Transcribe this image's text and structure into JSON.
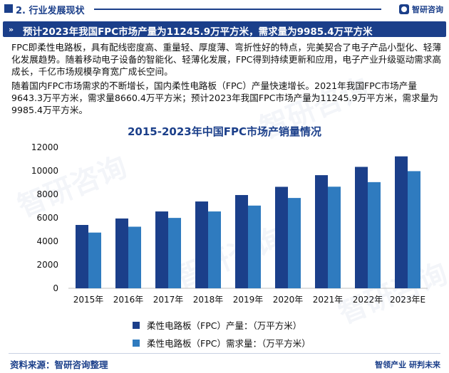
{
  "header": {
    "section_title": "2. 行业发展现状",
    "logo_text": "智研咨询"
  },
  "banner": {
    "text": "预计2023年我国FPC市场产量为11245.9万平方米，需求量为9985.4万平方米"
  },
  "body": {
    "paragraph1": "FPC即柔性电路板，具有配线密度高、重量轻、厚度薄、弯折性好的特点，完美契合了电子产品小型化、轻薄化发展趋势。随着移动电子设备的智能化、轻薄化发展，FPC得到持续更新和应用，电子产业升级驱动需求高成长，千亿市场规模孕育宽广成长空间。",
    "paragraph2": "随着国内FPC市场需求的不断增长，国内柔性电路板（FPC）产量快速增长。2021年我国FPC市场产量9643.3万平方米，需求量8660.4万平方米；预计2023年我国FPC市场产量为11245.9万平方米，需求量为9985.4万平方米。"
  },
  "chart_data": {
    "type": "bar",
    "title": "2015-2023年中国FPC市场产销量情况",
    "categories": [
      "2015年",
      "2016年",
      "2017年",
      "2018年",
      "2019年",
      "2020年",
      "2021年",
      "2022年",
      "2023年E"
    ],
    "series": [
      {
        "name": "柔性电路板（FPC）产量：（万平方米）",
        "color": "#1b3f8a",
        "values": [
          5400,
          5950,
          6550,
          7400,
          7950,
          8650,
          9643.3,
          10350,
          11245.9
        ]
      },
      {
        "name": "柔性电路板（FPC）需求量：（万平方米）",
        "color": "#2f7bbf",
        "values": [
          4750,
          5250,
          6000,
          6550,
          7050,
          7700,
          8660.4,
          9050,
          9985.4
        ]
      }
    ],
    "yticks": [
      0,
      2000,
      4000,
      6000,
      8000,
      10000,
      12000
    ],
    "ylim": [
      0,
      12500
    ],
    "grid": false,
    "legend": "bottom"
  },
  "footer": {
    "source": "资料来源：智研咨询整理",
    "slogan": "智领产业  研判未来"
  },
  "colors": {
    "brand": "#1b3f8a",
    "series2": "#2f7bbf"
  }
}
